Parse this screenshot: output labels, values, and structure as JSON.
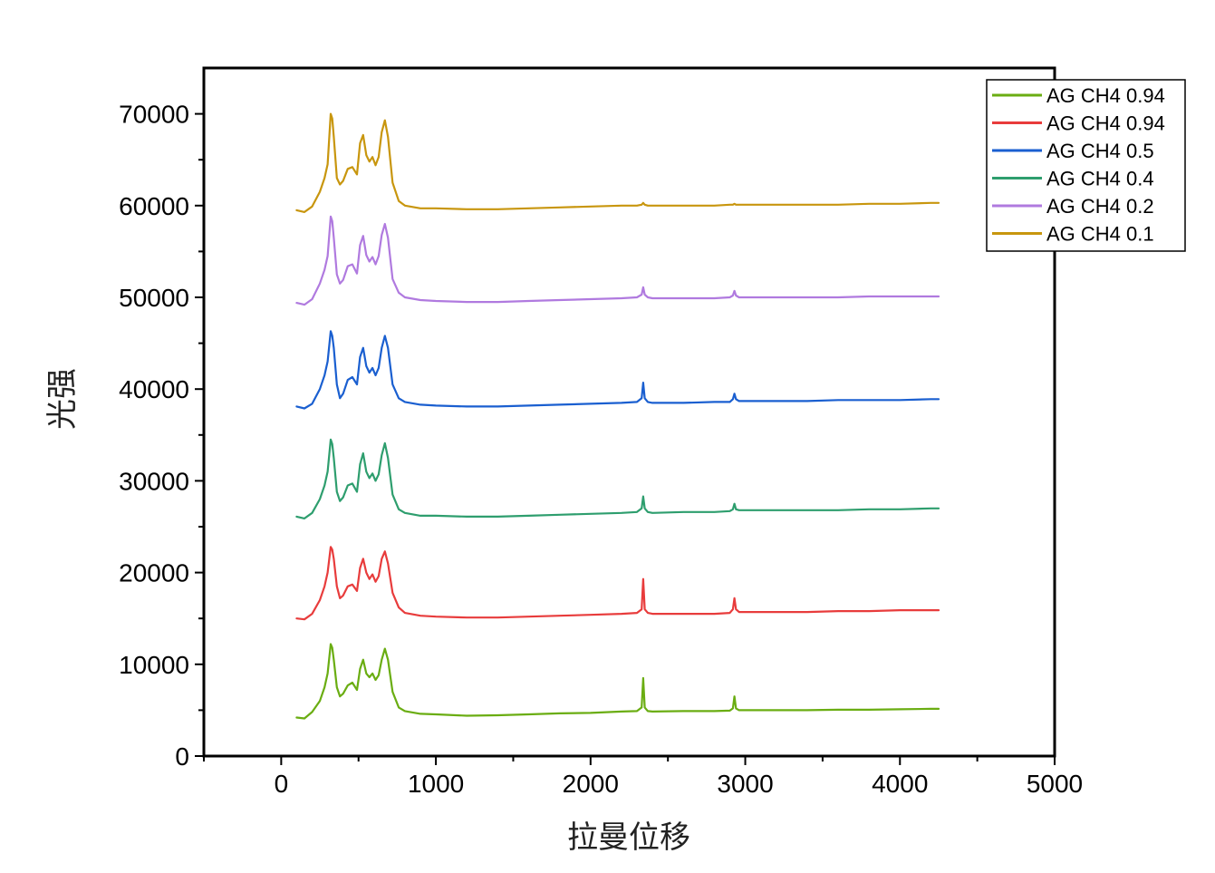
{
  "chart_data": {
    "type": "line",
    "title": "",
    "xlabel": "拉曼位移",
    "ylabel": "光强",
    "xlim": [
      -500,
      5000
    ],
    "ylim": [
      0,
      75000
    ],
    "xticks": [
      0,
      1000,
      2000,
      3000,
      4000,
      5000
    ],
    "yticks": [
      0,
      10000,
      20000,
      30000,
      40000,
      50000,
      60000,
      70000
    ],
    "xtick_labels": [
      "0",
      "1000",
      "2000",
      "3000",
      "4000",
      "5000"
    ],
    "ytick_labels": [
      "0",
      "10000",
      "20000",
      "30000",
      "40000",
      "50000",
      "60000",
      "70000"
    ],
    "legend_position": "top-right",
    "grid": false,
    "x": [
      100,
      150,
      200,
      250,
      280,
      300,
      320,
      330,
      340,
      360,
      380,
      400,
      430,
      460,
      490,
      510,
      530,
      550,
      570,
      590,
      610,
      630,
      650,
      670,
      690,
      720,
      760,
      800,
      900,
      1000,
      1200,
      1400,
      1600,
      1800,
      2000,
      2200,
      2300,
      2330,
      2340,
      2350,
      2370,
      2400,
      2600,
      2800,
      2900,
      2920,
      2930,
      2940,
      2960,
      3000,
      3200,
      3400,
      3600,
      3800,
      4000,
      4200,
      4250
    ],
    "series": [
      {
        "name": "AG CH4 0.94",
        "color": "#6aad12",
        "values": [
          4200,
          4100,
          4800,
          6000,
          7500,
          9000,
          12200,
          11800,
          10500,
          7500,
          6500,
          6800,
          7700,
          8000,
          7200,
          9500,
          10500,
          9000,
          8600,
          9000,
          8300,
          8800,
          10500,
          11700,
          10500,
          7000,
          5300,
          4900,
          4600,
          4550,
          4400,
          4450,
          4550,
          4650,
          4700,
          4850,
          4900,
          5300,
          8500,
          5300,
          4900,
          4850,
          4900,
          4900,
          4950,
          5200,
          6500,
          5200,
          5000,
          5000,
          5000,
          5000,
          5050,
          5050,
          5100,
          5150,
          5150
        ]
      },
      {
        "name": "AG CH4 0.94",
        "color": "#e83c3c",
        "values": [
          15000,
          14900,
          15500,
          17000,
          18500,
          20000,
          22800,
          22500,
          21500,
          18500,
          17200,
          17500,
          18500,
          18700,
          18000,
          20500,
          21500,
          20000,
          19300,
          19800,
          19000,
          19600,
          21500,
          22300,
          21000,
          17800,
          16200,
          15600,
          15300,
          15200,
          15100,
          15100,
          15200,
          15300,
          15400,
          15500,
          15600,
          16000,
          19300,
          16000,
          15600,
          15500,
          15500,
          15500,
          15600,
          16000,
          17200,
          16000,
          15700,
          15700,
          15700,
          15700,
          15800,
          15800,
          15900,
          15900,
          15900
        ]
      },
      {
        "name": "AG CH4 0.5",
        "color": "#1a5fd0",
        "values": [
          38100,
          37900,
          38400,
          40000,
          41500,
          43000,
          46300,
          45800,
          44500,
          40500,
          39000,
          39500,
          41000,
          41300,
          40500,
          43500,
          44500,
          42500,
          41800,
          42300,
          41500,
          42300,
          44500,
          45800,
          44500,
          40500,
          39000,
          38600,
          38300,
          38200,
          38100,
          38100,
          38200,
          38300,
          38400,
          38500,
          38600,
          39000,
          40700,
          39000,
          38600,
          38500,
          38500,
          38600,
          38600,
          38900,
          39500,
          38900,
          38700,
          38700,
          38700,
          38700,
          38800,
          38800,
          38800,
          38900,
          38900
        ]
      },
      {
        "name": "AG CH4 0.4",
        "color": "#2e9e6e",
        "values": [
          26100,
          25900,
          26500,
          28000,
          29500,
          31000,
          34500,
          34000,
          32500,
          28800,
          27800,
          28200,
          29500,
          29700,
          28800,
          31800,
          33000,
          31000,
          30300,
          30800,
          30000,
          30700,
          32800,
          34100,
          32500,
          28500,
          26900,
          26500,
          26200,
          26200,
          26100,
          26100,
          26200,
          26300,
          26400,
          26500,
          26600,
          27000,
          28300,
          27000,
          26600,
          26500,
          26600,
          26600,
          26700,
          26900,
          27500,
          26900,
          26800,
          26800,
          26800,
          26800,
          26800,
          26900,
          26900,
          27000,
          27000
        ]
      },
      {
        "name": "AG CH4 0.2",
        "color": "#b07adf",
        "values": [
          49400,
          49200,
          49800,
          51500,
          53000,
          54500,
          58800,
          58300,
          56500,
          52500,
          51500,
          51900,
          53400,
          53600,
          52600,
          55700,
          56700,
          54600,
          53900,
          54400,
          53600,
          54500,
          56800,
          58000,
          56500,
          52000,
          50500,
          50000,
          49700,
          49600,
          49500,
          49500,
          49600,
          49700,
          49800,
          49900,
          50000,
          50300,
          51100,
          50300,
          50000,
          49900,
          49900,
          49900,
          50000,
          50200,
          50700,
          50200,
          50000,
          50000,
          50000,
          50000,
          50000,
          50100,
          50100,
          50100,
          50100
        ]
      },
      {
        "name": "AG CH4 0.1",
        "color": "#c8960e",
        "values": [
          59500,
          59300,
          59900,
          61500,
          63000,
          64500,
          70000,
          69500,
          67500,
          63000,
          62300,
          62700,
          64000,
          64200,
          63400,
          66800,
          67700,
          65500,
          64800,
          65300,
          64400,
          65300,
          68000,
          69300,
          67500,
          62500,
          60500,
          60000,
          59700,
          59700,
          59600,
          59600,
          59700,
          59800,
          59900,
          60000,
          60000,
          60100,
          60300,
          60100,
          60000,
          60000,
          60000,
          60000,
          60100,
          60100,
          60200,
          60100,
          60100,
          60100,
          60100,
          60100,
          60100,
          60200,
          60200,
          60300,
          60300
        ]
      }
    ]
  }
}
